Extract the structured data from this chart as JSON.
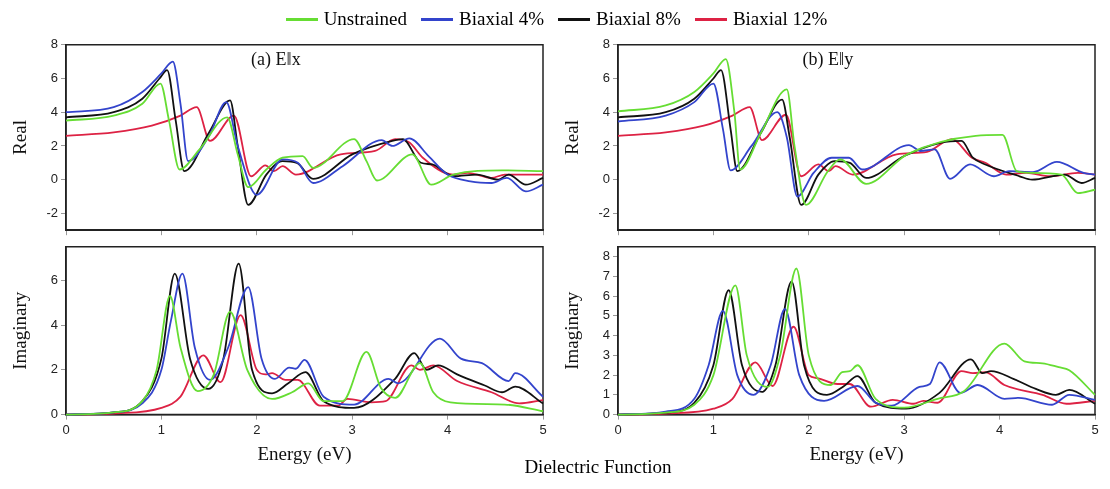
{
  "chart_data": [
    {
      "type": "line",
      "title": "(a) E‖x",
      "ylabel": "Real",
      "xlim": [
        0,
        5
      ],
      "xticks": [
        0,
        1,
        2,
        3,
        4,
        5
      ],
      "ylim": [
        -3,
        8
      ],
      "yticks": [
        -2,
        0,
        2,
        4,
        6,
        8
      ],
      "tick_labels": "y",
      "grid": false,
      "marker": "none",
      "legend": "top",
      "series": [
        {
          "name": "Unstrained",
          "color": "#66dd33",
          "x": [
            0,
            0.5,
            0.8,
            0.99,
            1.08,
            1.19,
            1.4,
            1.69,
            1.8,
            1.91,
            2.1,
            2.27,
            2.48,
            2.59,
            3.02,
            3.15,
            3.26,
            3.63,
            3.83,
            4.06,
            4.57,
            5
          ],
          "values": [
            3.5,
            3.8,
            4.5,
            5.7,
            3.5,
            0.6,
            1.8,
            3.7,
            1.5,
            -0.45,
            0.6,
            1.3,
            1.4,
            0.7,
            2.4,
            1.1,
            -0.05,
            1.5,
            -0.3,
            0.3,
            0.55,
            0.5
          ]
        },
        {
          "name": "Biaxial 4%",
          "color": "#3344cc",
          "x": [
            0,
            0.5,
            0.8,
            1.0,
            1.12,
            1.2,
            1.28,
            1.5,
            1.68,
            1.8,
            2.0,
            2.27,
            2.43,
            2.59,
            2.9,
            3.31,
            3.42,
            3.6,
            3.8,
            4.0,
            4.24,
            4.46,
            4.62,
            4.82,
            5
          ],
          "values": [
            4.0,
            4.3,
            5.2,
            6.3,
            7.0,
            4.5,
            1.1,
            2.6,
            4.6,
            2.0,
            -0.9,
            1.2,
            1.0,
            -0.2,
            0.8,
            2.35,
            2.0,
            2.45,
            1.4,
            0.3,
            -0.1,
            -0.2,
            0.1,
            -0.7,
            -0.3
          ]
        },
        {
          "name": "Biaxial 8%",
          "color": "#111111",
          "x": [
            0,
            0.5,
            0.8,
            0.98,
            1.06,
            1.15,
            1.24,
            1.5,
            1.72,
            1.8,
            1.91,
            2.1,
            2.27,
            2.42,
            2.59,
            3.0,
            3.42,
            3.53,
            3.72,
            3.84,
            4.06,
            4.31,
            4.53,
            4.64,
            4.82,
            5
          ],
          "values": [
            3.7,
            4.0,
            4.8,
            6.0,
            6.5,
            3.5,
            0.5,
            2.8,
            4.7,
            2.0,
            -1.5,
            0.3,
            1.1,
            1.0,
            0.05,
            1.5,
            2.3,
            2.4,
            1.0,
            0.9,
            0.2,
            0.3,
            0.0,
            0.3,
            -0.3,
            0.1
          ]
        },
        {
          "name": "Biaxial 12%",
          "color": "#dd2244",
          "x": [
            0,
            0.5,
            0.9,
            1.2,
            1.37,
            1.51,
            1.76,
            1.94,
            2.09,
            2.18,
            2.27,
            2.41,
            2.88,
            3.24,
            3.45,
            3.6,
            3.74,
            4.06,
            4.21,
            4.46,
            4.6,
            5
          ],
          "values": [
            2.6,
            2.8,
            3.2,
            3.8,
            4.3,
            2.3,
            3.8,
            0.2,
            0.85,
            0.5,
            0.8,
            0.3,
            1.5,
            1.7,
            2.4,
            2.2,
            1.3,
            0.3,
            0.4,
            0.1,
            0.3,
            0.3
          ]
        }
      ]
    },
    {
      "type": "line",
      "title": "(b) E‖y",
      "ylabel": "Real",
      "xlim": [
        0,
        5
      ],
      "xticks": [
        0,
        1,
        2,
        3,
        4,
        5
      ],
      "ylim": [
        -3,
        8
      ],
      "yticks": [
        -2,
        0,
        2,
        4,
        6,
        8
      ],
      "tick_labels": "y",
      "grid": false,
      "marker": "none",
      "series": [
        {
          "color": "#66dd33",
          "x": [
            0,
            0.5,
            0.8,
            1.0,
            1.13,
            1.22,
            1.28,
            1.5,
            1.77,
            1.85,
            1.97,
            2.2,
            2.33,
            2.6,
            3.03,
            3.75,
            4.03,
            4.18,
            4.32,
            4.65,
            4.82,
            5
          ],
          "values": [
            4.05,
            4.4,
            5.2,
            6.3,
            7.15,
            4.0,
            0.6,
            2.8,
            5.35,
            2.0,
            -1.5,
            0.5,
            1.2,
            -0.25,
            1.5,
            2.6,
            2.65,
            0.5,
            0.4,
            0.3,
            -0.8,
            -0.6
          ]
        },
        {
          "color": "#3344cc",
          "x": [
            0,
            0.5,
            0.8,
            1.0,
            1.1,
            1.18,
            1.4,
            1.67,
            1.77,
            1.88,
            2.05,
            2.24,
            2.42,
            2.56,
            3.05,
            3.17,
            3.32,
            3.48,
            3.69,
            3.94,
            4.1,
            4.35,
            4.6,
            4.88,
            5
          ],
          "values": [
            3.45,
            3.8,
            4.6,
            5.7,
            3.0,
            0.55,
            2.0,
            4.0,
            2.5,
            -1.0,
            0.4,
            1.3,
            1.3,
            0.6,
            2.05,
            1.7,
            1.8,
            0.05,
            0.9,
            0.2,
            0.5,
            0.45,
            1.05,
            0.4,
            0.3
          ]
        },
        {
          "color": "#111111",
          "x": [
            0,
            0.5,
            0.8,
            1.0,
            1.08,
            1.18,
            1.25,
            1.5,
            1.72,
            1.8,
            1.92,
            2.1,
            2.27,
            2.43,
            2.6,
            3.0,
            3.39,
            3.6,
            3.72,
            3.85,
            4.21,
            4.34,
            4.68,
            4.86,
            5
          ],
          "values": [
            3.7,
            4.0,
            4.8,
            6.0,
            6.5,
            3.0,
            0.5,
            2.8,
            4.75,
            2.5,
            -1.5,
            0.3,
            1.1,
            1.0,
            0.1,
            1.4,
            2.2,
            2.3,
            1.3,
            0.9,
            0.2,
            0.0,
            0.3,
            -0.2,
            0.1
          ]
        },
        {
          "color": "#dd2244",
          "x": [
            0,
            0.5,
            0.9,
            1.2,
            1.38,
            1.51,
            1.76,
            1.92,
            2.1,
            2.21,
            2.28,
            2.46,
            2.92,
            3.24,
            3.5,
            3.71,
            3.85,
            4.07,
            4.28,
            4.53,
            4.82,
            5
          ],
          "values": [
            2.6,
            2.8,
            3.2,
            3.8,
            4.3,
            2.35,
            3.85,
            0.2,
            0.9,
            0.5,
            0.8,
            0.3,
            1.5,
            1.65,
            2.4,
            1.3,
            1.0,
            0.3,
            0.4,
            0.2,
            0.4,
            0.3
          ]
        }
      ]
    },
    {
      "type": "line",
      "xlabel": "Energy (eV)",
      "ylabel": "Imaginary",
      "xlim": [
        0,
        5
      ],
      "xticks": [
        0,
        1,
        2,
        3,
        4,
        5
      ],
      "ylim": [
        0,
        7.5
      ],
      "yticks": [
        0,
        2,
        4,
        6
      ],
      "grid": false,
      "marker": "none",
      "annotations": [
        "Dielectric Function"
      ],
      "series": [
        {
          "color": "#66dd33",
          "x": [
            0,
            0.5,
            0.8,
            0.95,
            1.09,
            1.2,
            1.38,
            1.55,
            1.72,
            1.9,
            2.16,
            2.37,
            2.54,
            2.7,
            2.9,
            3.15,
            3.3,
            3.45,
            3.71,
            3.85,
            4.03,
            4.6,
            5
          ],
          "values": [
            0,
            0.1,
            0.6,
            2.0,
            5.3,
            3.0,
            1.05,
            1.8,
            4.6,
            2.0,
            0.7,
            1.0,
            1.4,
            0.6,
            0.6,
            2.8,
            1.2,
            0.75,
            2.3,
            1.0,
            0.55,
            0.45,
            0.15
          ]
        },
        {
          "color": "#3344cc",
          "x": [
            0,
            0.5,
            0.8,
            1.0,
            1.1,
            1.22,
            1.35,
            1.51,
            1.7,
            1.91,
            2.05,
            2.19,
            2.34,
            2.41,
            2.5,
            2.7,
            3.02,
            3.38,
            3.48,
            3.92,
            4.14,
            4.36,
            4.64,
            4.71,
            5
          ],
          "values": [
            0,
            0.1,
            0.5,
            2.0,
            4.2,
            6.3,
            3.0,
            1.55,
            3.0,
            5.7,
            2.5,
            1.6,
            2.1,
            2.05,
            2.45,
            0.8,
            0.45,
            1.6,
            1.4,
            3.4,
            2.5,
            2.3,
            1.5,
            1.85,
            0.8
          ]
        },
        {
          "color": "#111111",
          "x": [
            0,
            0.5,
            0.8,
            1.0,
            1.14,
            1.3,
            1.49,
            1.65,
            1.81,
            1.95,
            2.16,
            2.33,
            2.51,
            2.7,
            3.02,
            3.45,
            3.65,
            3.78,
            3.9,
            4.1,
            4.39,
            4.57,
            4.71,
            5
          ],
          "values": [
            0,
            0.1,
            0.6,
            2.5,
            6.3,
            2.5,
            1.15,
            2.5,
            6.75,
            2.0,
            0.95,
            1.4,
            1.9,
            0.6,
            0.3,
            1.6,
            2.75,
            2.0,
            2.2,
            1.8,
            1.3,
            1.0,
            1.25,
            0.5
          ]
        },
        {
          "color": "#dd2244",
          "x": [
            0,
            0.5,
            1.0,
            1.2,
            1.44,
            1.62,
            1.83,
            2.0,
            2.09,
            2.16,
            2.3,
            2.43,
            2.66,
            2.85,
            2.95,
            3.2,
            3.35,
            3.62,
            3.71,
            3.85,
            4.1,
            4.46,
            4.75,
            5
          ],
          "values": [
            0,
            0.05,
            0.3,
            0.8,
            2.65,
            1.45,
            4.45,
            2.0,
            1.8,
            1.85,
            1.55,
            1.55,
            0.4,
            0.4,
            0.7,
            0.55,
            0.6,
            2.2,
            2.0,
            2.2,
            1.5,
            1.0,
            0.5,
            0.65
          ]
        }
      ]
    },
    {
      "type": "line",
      "xlabel": "Energy (eV)",
      "ylabel": "Imaginary",
      "xlim": [
        0,
        5
      ],
      "xticks": [
        0,
        1,
        2,
        3,
        4,
        5
      ],
      "ylim": [
        0,
        8.5
      ],
      "yticks": [
        0,
        1,
        2,
        3,
        4,
        5,
        6,
        7,
        8
      ],
      "grid": false,
      "marker": "none",
      "series": [
        {
          "color": "#66dd33",
          "x": [
            0,
            0.5,
            0.8,
            1.0,
            1.23,
            1.35,
            1.57,
            1.7,
            1.87,
            2.0,
            2.23,
            2.35,
            2.43,
            2.51,
            2.7,
            3.0,
            3.35,
            3.63,
            4.05,
            4.26,
            4.45,
            4.62,
            4.73,
            5
          ],
          "values": [
            0,
            0.1,
            0.5,
            2.0,
            6.55,
            3.0,
            1.4,
            3.0,
            7.4,
            3.0,
            1.5,
            2.15,
            2.2,
            2.5,
            0.8,
            0.35,
            0.8,
            1.2,
            3.6,
            2.7,
            2.6,
            2.4,
            2.25,
            1.0
          ]
        },
        {
          "color": "#3344cc",
          "x": [
            0,
            0.5,
            0.8,
            0.95,
            1.1,
            1.25,
            1.42,
            1.6,
            1.75,
            1.9,
            2.16,
            2.51,
            2.7,
            2.87,
            3.16,
            3.27,
            3.37,
            3.59,
            3.77,
            4.05,
            4.2,
            4.55,
            4.73,
            5
          ],
          "values": [
            0,
            0.15,
            0.8,
            2.5,
            5.25,
            2.0,
            1.0,
            2.5,
            5.35,
            2.0,
            0.7,
            1.45,
            0.6,
            0.45,
            1.4,
            1.55,
            2.65,
            1.1,
            1.5,
            0.8,
            0.85,
            0.5,
            1.0,
            0.75
          ]
        },
        {
          "color": "#111111",
          "x": [
            0,
            0.5,
            0.8,
            1.0,
            1.16,
            1.3,
            1.51,
            1.65,
            1.82,
            1.95,
            2.19,
            2.37,
            2.51,
            2.7,
            3.02,
            3.37,
            3.7,
            3.82,
            3.91,
            4.15,
            4.38,
            4.59,
            4.73,
            5
          ],
          "values": [
            0,
            0.1,
            0.6,
            2.5,
            6.3,
            2.5,
            1.15,
            2.5,
            6.75,
            2.5,
            1.0,
            1.45,
            1.95,
            0.6,
            0.3,
            1.1,
            2.8,
            2.1,
            2.2,
            1.8,
            1.3,
            1.0,
            1.25,
            0.55
          ]
        },
        {
          "color": "#dd2244",
          "x": [
            0,
            0.5,
            1.0,
            1.2,
            1.44,
            1.62,
            1.84,
            2.0,
            2.09,
            2.3,
            2.43,
            2.65,
            2.88,
            3.1,
            3.2,
            3.35,
            3.6,
            3.72,
            3.85,
            4.05,
            4.45,
            4.7,
            5
          ],
          "values": [
            0,
            0.05,
            0.3,
            0.8,
            2.65,
            1.45,
            4.45,
            2.0,
            1.85,
            1.55,
            1.55,
            0.4,
            0.75,
            0.55,
            0.7,
            0.6,
            2.2,
            2.1,
            2.15,
            1.5,
            1.0,
            0.55,
            0.7
          ]
        }
      ]
    }
  ]
}
